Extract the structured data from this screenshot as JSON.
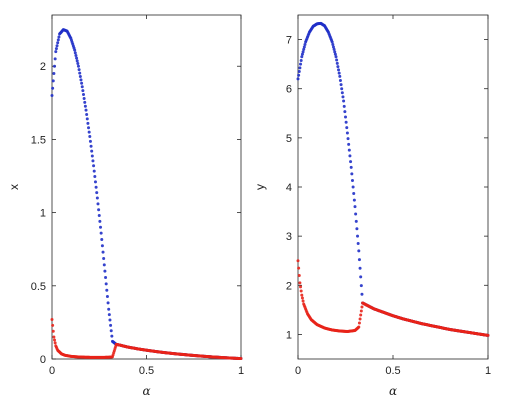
{
  "chart_data": [
    {
      "type": "scatter",
      "panel": "left",
      "xlabel": "α",
      "ylabel": "x",
      "xlim": [
        0,
        1
      ],
      "ylim": [
        0,
        2.35
      ],
      "xticks": [
        0,
        0.5,
        1
      ],
      "yticks": [
        0,
        0.5,
        1,
        1.5,
        2
      ],
      "xtick_labels": [
        "0",
        "0.5",
        "1"
      ],
      "ytick_labels": [
        "0",
        "0.5",
        "1",
        "1.5",
        "2"
      ],
      "grid": false,
      "legend": false,
      "series": [
        {
          "color": "#1f2fc8",
          "x": [
            0.0,
            0.02,
            0.04,
            0.06,
            0.08,
            0.1,
            0.12,
            0.14,
            0.16,
            0.18,
            0.2,
            0.22,
            0.24,
            0.26,
            0.28,
            0.3,
            0.32,
            0.34,
            0.36,
            0.38,
            0.4,
            0.45,
            0.5,
            0.55,
            0.6,
            0.65,
            0.7,
            0.75,
            0.8,
            0.85,
            0.9,
            0.95,
            1.0
          ],
          "y": [
            1.8,
            2.1,
            2.22,
            2.25,
            2.24,
            2.19,
            2.11,
            2.0,
            1.86,
            1.7,
            1.52,
            1.32,
            1.1,
            0.86,
            0.6,
            0.34,
            0.12,
            0.1,
            0.095,
            0.088,
            0.082,
            0.07,
            0.06,
            0.051,
            0.043,
            0.036,
            0.03,
            0.024,
            0.019,
            0.014,
            0.01,
            0.006,
            0.003
          ]
        },
        {
          "color": "#e8231a",
          "x": [
            0.0,
            0.01,
            0.02,
            0.03,
            0.05,
            0.07,
            0.1,
            0.14,
            0.18,
            0.22,
            0.26,
            0.3,
            0.32,
            0.34,
            0.36,
            0.38,
            0.4,
            0.45,
            0.5,
            0.55,
            0.6,
            0.65,
            0.7,
            0.75,
            0.8,
            0.85,
            0.9,
            0.95,
            1.0
          ],
          "y": [
            0.27,
            0.15,
            0.09,
            0.06,
            0.035,
            0.025,
            0.018,
            0.014,
            0.012,
            0.011,
            0.011,
            0.012,
            0.015,
            0.1,
            0.095,
            0.088,
            0.082,
            0.07,
            0.06,
            0.051,
            0.043,
            0.036,
            0.03,
            0.024,
            0.019,
            0.014,
            0.01,
            0.006,
            0.003
          ]
        }
      ]
    },
    {
      "type": "scatter",
      "panel": "right",
      "xlabel": "α",
      "ylabel": "y",
      "xlim": [
        0,
        1
      ],
      "ylim": [
        0.5,
        7.5
      ],
      "xticks": [
        0,
        0.5,
        1
      ],
      "yticks": [
        1,
        2,
        3,
        4,
        5,
        6,
        7
      ],
      "xtick_labels": [
        "0",
        "0.5",
        "1"
      ],
      "ytick_labels": [
        "1",
        "2",
        "3",
        "4",
        "5",
        "6",
        "7"
      ],
      "grid": false,
      "legend": false,
      "series": [
        {
          "color": "#1f2fc8",
          "x": [
            0.0,
            0.02,
            0.04,
            0.06,
            0.08,
            0.1,
            0.12,
            0.14,
            0.16,
            0.18,
            0.2,
            0.22,
            0.24,
            0.26,
            0.28,
            0.3,
            0.32,
            0.34,
            0.36,
            0.38,
            0.4,
            0.45,
            0.5,
            0.55,
            0.6,
            0.65,
            0.7,
            0.75,
            0.8,
            0.85,
            0.9,
            0.95,
            1.0
          ],
          "y": [
            6.2,
            6.65,
            6.95,
            7.15,
            7.27,
            7.32,
            7.33,
            7.28,
            7.15,
            6.95,
            6.65,
            6.25,
            5.75,
            5.1,
            4.4,
            3.6,
            2.7,
            1.64,
            1.6,
            1.56,
            1.52,
            1.45,
            1.38,
            1.32,
            1.27,
            1.22,
            1.18,
            1.14,
            1.1,
            1.07,
            1.04,
            1.01,
            0.98
          ]
        },
        {
          "color": "#e8231a",
          "x": [
            0.0,
            0.01,
            0.02,
            0.03,
            0.05,
            0.07,
            0.1,
            0.14,
            0.18,
            0.22,
            0.26,
            0.3,
            0.32,
            0.34,
            0.36,
            0.38,
            0.4,
            0.45,
            0.5,
            0.55,
            0.6,
            0.65,
            0.7,
            0.75,
            0.8,
            0.85,
            0.9,
            0.95,
            1.0
          ],
          "y": [
            2.5,
            2.05,
            1.8,
            1.62,
            1.42,
            1.3,
            1.2,
            1.13,
            1.09,
            1.07,
            1.06,
            1.08,
            1.15,
            1.64,
            1.6,
            1.56,
            1.52,
            1.45,
            1.38,
            1.32,
            1.27,
            1.22,
            1.18,
            1.14,
            1.1,
            1.07,
            1.04,
            1.01,
            0.98
          ]
        }
      ]
    }
  ]
}
